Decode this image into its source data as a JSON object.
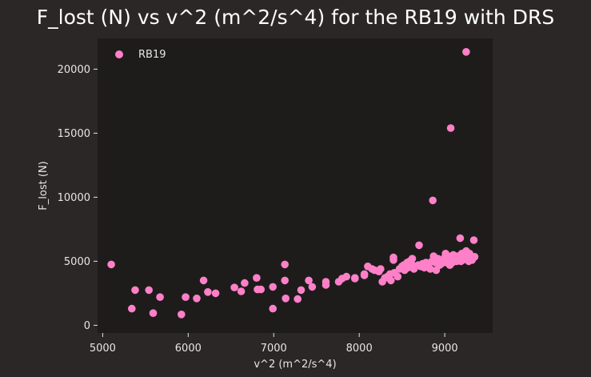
{
  "chart_data": {
    "type": "scatter",
    "title": "F_lost (N) vs v^2 (m^2/s^4) for the RB19 with DRS",
    "xlabel": "v^2 (m^2/s^4)",
    "ylabel": "F_lost (N)",
    "xlim": [
      4940,
      9560
    ],
    "ylim": [
      -600,
      22400
    ],
    "xticks": [
      5000,
      6000,
      7000,
      8000,
      9000
    ],
    "yticks": [
      0,
      5000,
      10000,
      15000,
      20000
    ],
    "legend": {
      "position": "top-left",
      "entries": [
        "RB19"
      ]
    },
    "grid": false,
    "colors": {
      "page_background": "#2b2726",
      "plot_background": "#1d1c1b",
      "marker": "#ff80c8",
      "text": "#e6e6e6"
    },
    "series": [
      {
        "name": "RB19",
        "points": [
          [
            5100,
            4750
          ],
          [
            5340,
            1300
          ],
          [
            5380,
            2750
          ],
          [
            5540,
            2750
          ],
          [
            5590,
            950
          ],
          [
            5670,
            2200
          ],
          [
            5920,
            850
          ],
          [
            5970,
            2200
          ],
          [
            6100,
            2100
          ],
          [
            6180,
            3500
          ],
          [
            6230,
            2600
          ],
          [
            6320,
            2500
          ],
          [
            6540,
            2950
          ],
          [
            6620,
            2650
          ],
          [
            6660,
            3300
          ],
          [
            6800,
            3700
          ],
          [
            6810,
            2800
          ],
          [
            6850,
            2800
          ],
          [
            6990,
            1300
          ],
          [
            6990,
            3000
          ],
          [
            7130,
            4750
          ],
          [
            7130,
            3500
          ],
          [
            7140,
            2100
          ],
          [
            7280,
            2050
          ],
          [
            7320,
            2750
          ],
          [
            7410,
            3500
          ],
          [
            7450,
            3000
          ],
          [
            7610,
            3400
          ],
          [
            7610,
            3150
          ],
          [
            7760,
            3400
          ],
          [
            7800,
            3650
          ],
          [
            7850,
            3800
          ],
          [
            7950,
            3700
          ],
          [
            7950,
            3650
          ],
          [
            8060,
            3900
          ],
          [
            8060,
            4000
          ],
          [
            8100,
            4600
          ],
          [
            8150,
            4400
          ],
          [
            8180,
            4300
          ],
          [
            8230,
            4200
          ],
          [
            8250,
            4400
          ],
          [
            8270,
            3400
          ],
          [
            8300,
            3700
          ],
          [
            8330,
            3800
          ],
          [
            8360,
            4000
          ],
          [
            8370,
            3500
          ],
          [
            8400,
            5300
          ],
          [
            8400,
            5100
          ],
          [
            8410,
            4100
          ],
          [
            8450,
            3800
          ],
          [
            8470,
            4400
          ],
          [
            8500,
            4600
          ],
          [
            8520,
            4700
          ],
          [
            8530,
            4300
          ],
          [
            8560,
            4900
          ],
          [
            8570,
            4500
          ],
          [
            8590,
            5000
          ],
          [
            8610,
            4800
          ],
          [
            8620,
            5200
          ],
          [
            8640,
            4400
          ],
          [
            8660,
            4600
          ],
          [
            8690,
            4700
          ],
          [
            8700,
            6250
          ],
          [
            8720,
            4600
          ],
          [
            8740,
            4800
          ],
          [
            8760,
            4500
          ],
          [
            8780,
            4900
          ],
          [
            8810,
            4600
          ],
          [
            8830,
            4400
          ],
          [
            8850,
            5000
          ],
          [
            8860,
            9750
          ],
          [
            8870,
            5400
          ],
          [
            8890,
            4900
          ],
          [
            8900,
            4300
          ],
          [
            8920,
            5200
          ],
          [
            8940,
            4700
          ],
          [
            8960,
            4800
          ],
          [
            8980,
            5000
          ],
          [
            9000,
            5300
          ],
          [
            9010,
            5600
          ],
          [
            9020,
            4900
          ],
          [
            9030,
            5100
          ],
          [
            9040,
            5400
          ],
          [
            9050,
            5200
          ],
          [
            9060,
            4700
          ],
          [
            9070,
            15400
          ],
          [
            9080,
            5000
          ],
          [
            9090,
            4900
          ],
          [
            9100,
            5500
          ],
          [
            9110,
            5100
          ],
          [
            9130,
            5300
          ],
          [
            9140,
            5000
          ],
          [
            9150,
            5400
          ],
          [
            9160,
            5200
          ],
          [
            9180,
            6800
          ],
          [
            9190,
            5000
          ],
          [
            9200,
            5600
          ],
          [
            9210,
            5100
          ],
          [
            9230,
            5300
          ],
          [
            9240,
            5500
          ],
          [
            9250,
            5800
          ],
          [
            9250,
            21350
          ],
          [
            9260,
            5200
          ],
          [
            9280,
            5000
          ],
          [
            9290,
            5600
          ],
          [
            9300,
            5300
          ],
          [
            9320,
            5100
          ],
          [
            9340,
            6650
          ],
          [
            9350,
            5350
          ]
        ]
      }
    ]
  }
}
